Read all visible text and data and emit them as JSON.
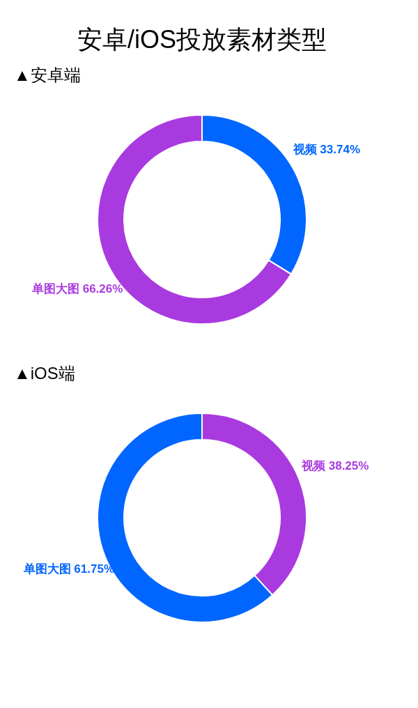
{
  "chart_data": [
    {
      "type": "donut",
      "title": "安卓/iOS投放素材类型",
      "subtitle": "▲安卓端",
      "categories": [
        "视频",
        "单图大图"
      ],
      "values": [
        33.74,
        66.26
      ],
      "colors": [
        "#0066ff",
        "#a93ae0"
      ],
      "value_labels": [
        "33.74%",
        "66.26%"
      ],
      "legend": false
    },
    {
      "type": "donut",
      "title": "▲iOS端",
      "categories": [
        "视频",
        "单图大图"
      ],
      "values": [
        38.25,
        61.75
      ],
      "colors": [
        "#a93ae0",
        "#0066ff"
      ],
      "value_labels": [
        "38.25%",
        "61.75%"
      ],
      "legend": false
    }
  ]
}
